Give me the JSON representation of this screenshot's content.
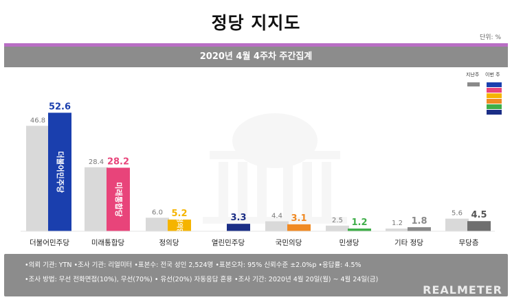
{
  "header": {
    "title": "정당 지지도",
    "unit": "단위: %",
    "subtitle": "2020년 4월 4주차 주간집계"
  },
  "legend": {
    "prev_label": "지난주",
    "cur_label": "이번 주",
    "cur_swatches": [
      "#1a3fae",
      "#e8447a",
      "#f5b400",
      "#f08a24",
      "#3fae49",
      "#1b2e86"
    ],
    "prev_color": "#cccccc"
  },
  "chart_data": {
    "type": "bar",
    "categories": [
      "더불어민주당",
      "미래통합당",
      "정의당",
      "열린민주당",
      "국민의당",
      "민생당",
      "기타 정당",
      "무당층"
    ],
    "series": [
      {
        "name": "지난주",
        "values": [
          46.8,
          28.4,
          6.0,
          null,
          4.4,
          2.5,
          1.2,
          5.6
        ]
      },
      {
        "name": "이번 주",
        "values": [
          52.6,
          28.2,
          5.2,
          3.3,
          3.1,
          1.2,
          1.8,
          4.5
        ]
      }
    ],
    "colors": {
      "prev": "#d9d9d9",
      "current": [
        "#1a3fae",
        "#e8447a",
        "#f5b400",
        "#1b2e86",
        "#f08a24",
        "#3fae49",
        "#8a8a8a",
        "#6f6f6f"
      ],
      "value_labels": [
        "#1a3fae",
        "#e8447a",
        "#f5b400",
        "#1b2e86",
        "#f08a24",
        "#3fae49",
        "#8a8a8a",
        "#555555"
      ]
    },
    "bar_text": [
      "더불어민주당",
      "미래통합당",
      "정의당",
      "",
      "",
      "",
      "",
      ""
    ],
    "ylim": [
      0,
      60
    ],
    "grid": false
  },
  "footer": {
    "line1": "•의뢰 기관: YTN  •조사 기관: 리얼미터  •표본수: 전국 성인 2,524명  •표본오차: 95% 신뢰수준 ±2.0%p  •응답률: 4.5%",
    "line2": "•조사 방법: 무선 전화면접(10%), 무선(70%) • 유선(20%) 자동응답 혼용  •조사 기간: 2020년 4월 20일(월) ~ 4월 24일(금)",
    "brand": "REALMETER"
  }
}
